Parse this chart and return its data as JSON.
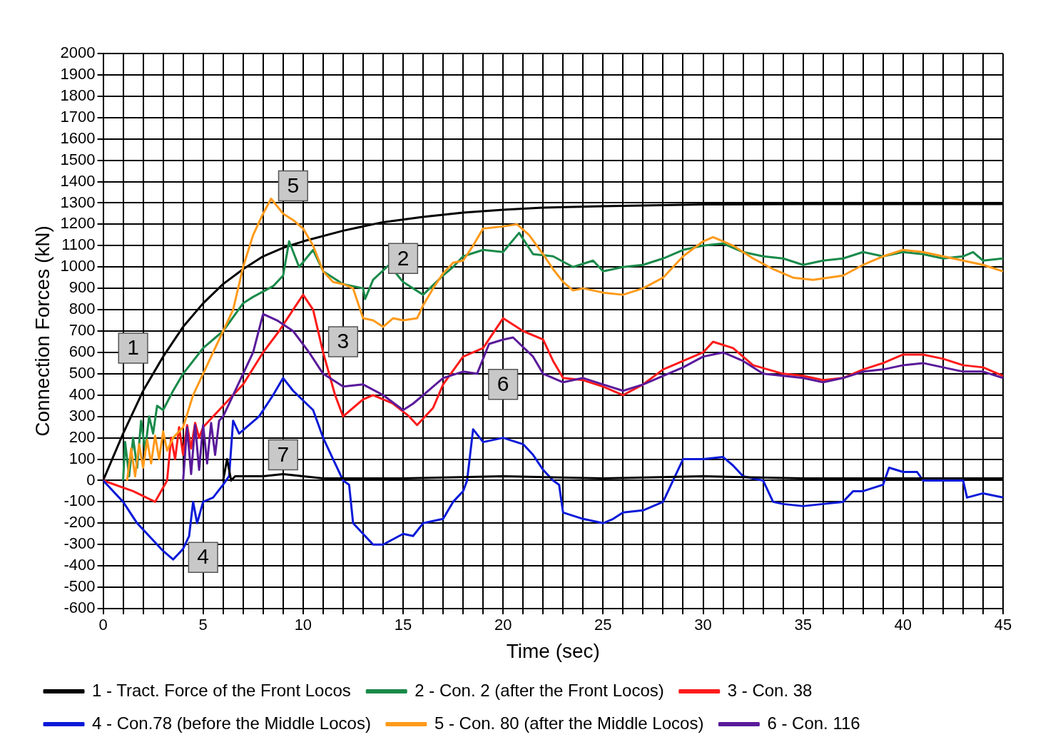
{
  "chart_data": {
    "type": "line",
    "xlabel": "Time (sec)",
    "ylabel": "Connection Forces (kN)",
    "xlim": [
      0,
      45
    ],
    "xticks": [
      0,
      {
        "value": 1,
        "label": null
      },
      {
        "value": 2,
        "label": null
      },
      {
        "value": 3,
        "label": null
      },
      {
        "value": 4,
        "label": null
      },
      5,
      {
        "value": 6,
        "label": null
      },
      {
        "value": 7,
        "label": null
      },
      {
        "value": 8,
        "label": null
      },
      {
        "value": 9,
        "label": null
      },
      10,
      {
        "value": 11,
        "label": null
      },
      {
        "value": 12,
        "label": null
      },
      {
        "value": 13,
        "label": null
      },
      {
        "value": 14,
        "label": null
      },
      15,
      {
        "value": 16,
        "label": null
      },
      {
        "value": 17,
        "label": null
      },
      {
        "value": 18,
        "label": null
      },
      {
        "value": 19,
        "label": null
      },
      20,
      {
        "value": 21,
        "label": null
      },
      {
        "value": 22,
        "label": null
      },
      {
        "value": 23,
        "label": null
      },
      {
        "value": 24,
        "label": null
      },
      25,
      {
        "value": 26,
        "label": null
      },
      {
        "value": 27,
        "label": null
      },
      {
        "value": 28,
        "label": null
      },
      {
        "value": 29,
        "label": null
      },
      30,
      {
        "value": 31,
        "label": null
      },
      {
        "value": 32,
        "label": null
      },
      {
        "value": 33,
        "label": null
      },
      {
        "value": 34,
        "label": null
      },
      35,
      {
        "value": 36,
        "label": null
      },
      {
        "value": 37,
        "label": null
      },
      {
        "value": 38,
        "label": null
      },
      {
        "value": 39,
        "label": null
      },
      40,
      {
        "value": 41,
        "label": null
      },
      {
        "value": 42,
        "label": null
      },
      {
        "value": 43,
        "label": null
      },
      {
        "value": 44,
        "label": null
      },
      45
    ],
    "ylim": [
      -600,
      2000
    ],
    "yticks": [
      -600,
      -500,
      -400,
      -300,
      -200,
      -100,
      0,
      100,
      200,
      300,
      400,
      500,
      600,
      700,
      800,
      900,
      1000,
      1100,
      1200,
      1300,
      1400,
      1500,
      1600,
      1700,
      1800,
      1900,
      2000
    ],
    "grid": true,
    "legend": "bottom",
    "marker": "none",
    "line_style": "solid",
    "series": [
      {
        "name": "1 - Tract. Force of the Front Locos",
        "color": "#000000",
        "x": [
          0,
          1,
          2,
          3,
          4,
          5,
          6,
          7,
          8,
          9,
          10,
          12,
          14,
          16,
          18,
          20,
          22,
          25,
          28,
          30,
          35,
          40,
          45
        ],
        "values": [
          0,
          220,
          420,
          580,
          720,
          830,
          920,
          990,
          1050,
          1090,
          1120,
          1170,
          1210,
          1235,
          1255,
          1268,
          1278,
          1285,
          1290,
          1293,
          1295,
          1295,
          1295
        ]
      },
      {
        "name": "2 - Con. 2 (after the Front Locos)",
        "color": "#1a8a4a",
        "x": [
          1,
          1.1,
          1.3,
          1.5,
          1.7,
          1.9,
          2.1,
          2.3,
          2.5,
          2.7,
          3,
          3.5,
          4,
          5,
          6,
          7,
          7.5,
          8.5,
          9,
          9.3,
          9.8,
          10.5,
          11,
          12,
          13,
          13.1,
          13.5,
          14.3,
          15,
          16,
          17,
          17.5,
          18,
          19,
          20,
          20.8,
          21.5,
          22.5,
          23.5,
          24.5,
          25,
          26,
          27,
          28,
          29,
          30,
          31,
          32,
          33,
          34,
          35,
          36,
          37,
          38,
          39,
          40,
          41,
          42,
          43,
          43.5,
          44,
          45
        ],
        "values": [
          0,
          180,
          20,
          200,
          60,
          280,
          140,
          300,
          220,
          350,
          330,
          420,
          500,
          620,
          700,
          830,
          860,
          910,
          960,
          1120,
          1000,
          1080,
          980,
          920,
          900,
          850,
          940,
          1010,
          930,
          870,
          960,
          1000,
          1050,
          1080,
          1070,
          1160,
          1060,
          1050,
          1000,
          1030,
          980,
          1000,
          1010,
          1040,
          1080,
          1100,
          1110,
          1070,
          1050,
          1040,
          1010,
          1030,
          1040,
          1070,
          1050,
          1070,
          1060,
          1040,
          1050,
          1070,
          1030,
          1040
        ]
      },
      {
        "name": "3 - Con. 38",
        "color": "#ff1a1a",
        "x": [
          0,
          1.5,
          2.6,
          3.2,
          3.4,
          3.6,
          3.8,
          4,
          4.2,
          4.4,
          4.6,
          4.8,
          5,
          6,
          7,
          8,
          8.8,
          9.5,
          10,
          10.5,
          11,
          11.6,
          12,
          13,
          13.5,
          14.5,
          15.3,
          15.7,
          16.5,
          17,
          18,
          19,
          20,
          21,
          22,
          22.5,
          23,
          24,
          25,
          26,
          27,
          28,
          29,
          30,
          30.5,
          31.5,
          32.5,
          34,
          35,
          36,
          37,
          38,
          39,
          40,
          41,
          42,
          43,
          44,
          45
        ],
        "values": [
          0,
          -50,
          -100,
          0,
          200,
          100,
          250,
          120,
          260,
          150,
          270,
          200,
          250,
          350,
          450,
          600,
          700,
          800,
          870,
          800,
          600,
          400,
          300,
          380,
          400,
          360,
          300,
          260,
          340,
          450,
          580,
          620,
          760,
          700,
          660,
          560,
          480,
          470,
          440,
          400,
          450,
          520,
          560,
          600,
          650,
          620,
          540,
          500,
          490,
          470,
          480,
          520,
          550,
          590,
          590,
          570,
          540,
          530,
          490
        ]
      },
      {
        "name": "4 - Con.78 (before the Middle Locos)",
        "color": "#0a1ad8",
        "x": [
          0,
          1,
          1.7,
          2.5,
          3,
          3.5,
          4,
          4.3,
          4.5,
          4.7,
          5,
          5.5,
          6,
          6.3,
          6.5,
          6.8,
          7.3,
          7.8,
          8.5,
          9,
          9.5,
          10.5,
          11,
          11.5,
          12,
          12.3,
          12.5,
          13,
          13.5,
          14,
          15,
          15.5,
          16,
          17,
          17.5,
          18,
          18.2,
          18.5,
          19,
          20,
          21,
          21.5,
          22,
          22.5,
          22.8,
          23,
          24,
          25,
          25.5,
          26,
          27,
          28,
          28.5,
          29,
          30,
          31,
          31.5,
          32,
          33,
          33.5,
          34,
          35,
          36,
          37,
          37.5,
          38,
          39,
          39.3,
          40,
          40.7,
          41,
          42,
          43,
          43.2,
          44,
          45
        ],
        "values": [
          0,
          -100,
          -200,
          -280,
          -330,
          -370,
          -320,
          -260,
          -100,
          -200,
          -100,
          -80,
          -20,
          20,
          280,
          220,
          260,
          300,
          400,
          480,
          420,
          330,
          200,
          100,
          0,
          -20,
          -200,
          -250,
          -300,
          -300,
          -250,
          -260,
          -200,
          -180,
          -100,
          -50,
          0,
          240,
          180,
          200,
          170,
          120,
          50,
          0,
          -20,
          -150,
          -180,
          -200,
          -180,
          -150,
          -140,
          -100,
          0,
          100,
          100,
          110,
          70,
          20,
          0,
          -100,
          -110,
          -120,
          -110,
          -100,
          -50,
          -50,
          -20,
          60,
          40,
          40,
          0,
          0,
          0,
          -80,
          -60,
          -80
        ]
      },
      {
        "name": "5 - Con. 80 (after the Middle Locos)",
        "color": "#ff9a1a",
        "x": [
          1.2,
          1.4,
          1.6,
          1.8,
          2,
          2.2,
          2.4,
          2.6,
          2.8,
          3,
          3.2,
          3.5,
          4,
          4.5,
          5,
          5.5,
          6,
          6.5,
          7,
          7.5,
          8,
          8.4,
          9,
          9.5,
          10,
          10.5,
          11,
          11.5,
          12,
          12.5,
          13,
          13.5,
          14,
          14.5,
          15,
          15.7,
          16,
          16.5,
          17,
          17.5,
          18,
          18.5,
          19,
          20,
          20.7,
          21.3,
          22,
          22.5,
          23,
          23.5,
          24,
          25,
          26,
          27,
          28,
          29,
          30,
          30.5,
          31.5,
          32.5,
          33.5,
          34.5,
          35.5,
          37,
          38,
          39,
          40,
          41,
          42,
          43,
          44,
          45
        ],
        "values": [
          0,
          150,
          20,
          170,
          60,
          190,
          80,
          210,
          100,
          230,
          140,
          200,
          250,
          400,
          500,
          600,
          700,
          800,
          1000,
          1150,
          1250,
          1320,
          1250,
          1220,
          1180,
          1100,
          980,
          930,
          920,
          900,
          760,
          750,
          720,
          760,
          750,
          760,
          820,
          900,
          970,
          1020,
          1030,
          1100,
          1180,
          1190,
          1200,
          1150,
          1060,
          990,
          930,
          890,
          900,
          880,
          870,
          900,
          950,
          1050,
          1120,
          1140,
          1100,
          1040,
          990,
          950,
          940,
          960,
          1010,
          1050,
          1080,
          1070,
          1050,
          1030,
          1010,
          980
        ]
      },
      {
        "name": "6 - Con. 116",
        "color": "#5a1a9a",
        "x": [
          4,
          4.2,
          4.4,
          4.6,
          4.8,
          5,
          5.2,
          5.4,
          5.6,
          5.8,
          6,
          6.5,
          7,
          7.5,
          8,
          8.7,
          9.5,
          10.3,
          11,
          12,
          13,
          14,
          15,
          15.5,
          16,
          17,
          18,
          18.7,
          19.3,
          20,
          20.5,
          21.5,
          22,
          23,
          24,
          25,
          26,
          27,
          28,
          29,
          30,
          31,
          32,
          33,
          34,
          35,
          36,
          37,
          38,
          39,
          40,
          41,
          42,
          43,
          44,
          45
        ],
        "values": [
          0,
          250,
          30,
          260,
          50,
          260,
          80,
          270,
          120,
          280,
          300,
          400,
          500,
          600,
          780,
          750,
          700,
          600,
          500,
          440,
          450,
          400,
          330,
          360,
          400,
          480,
          510,
          500,
          640,
          660,
          670,
          580,
          500,
          460,
          480,
          450,
          420,
          450,
          490,
          530,
          580,
          600,
          560,
          500,
          490,
          480,
          460,
          480,
          510,
          520,
          540,
          550,
          530,
          510,
          510,
          480
        ]
      },
      {
        "color": "#000000",
        "x": [
          6,
          6.2,
          6.4,
          6.6,
          7,
          8,
          9,
          10,
          11,
          15,
          20,
          25,
          30,
          35,
          40,
          45
        ],
        "values": [
          0,
          100,
          0,
          20,
          20,
          20,
          30,
          20,
          10,
          10,
          20,
          10,
          20,
          10,
          10,
          10
        ]
      }
    ],
    "annotations": [
      {
        "text": "1",
        "x": 1.5,
        "y": 620
      },
      {
        "text": "2",
        "x": 15,
        "y": 1040
      },
      {
        "text": "3",
        "x": 12,
        "y": 650
      },
      {
        "text": "4",
        "x": 5,
        "y": -360
      },
      {
        "text": "5",
        "x": 9.5,
        "y": 1380
      },
      {
        "text": "6",
        "x": 20,
        "y": 450
      },
      {
        "text": "7",
        "x": 9,
        "y": 120
      }
    ]
  }
}
